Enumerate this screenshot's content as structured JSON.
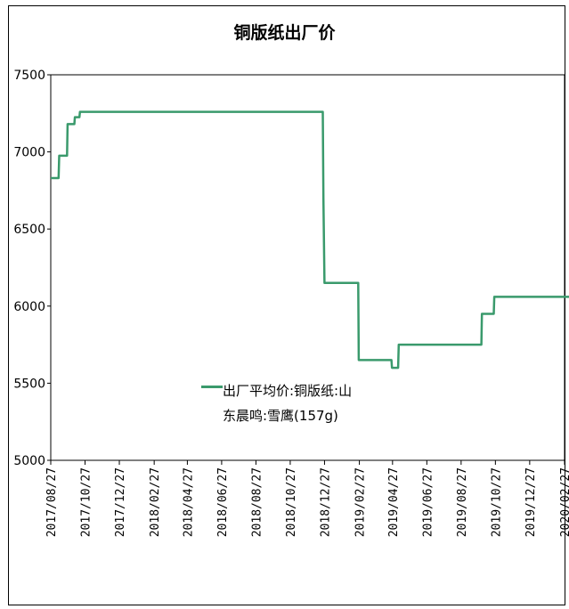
{
  "chart_data": {
    "type": "line",
    "title": "铜版纸出厂价",
    "xlabel": "",
    "ylabel": "",
    "ylim": [
      5000,
      7500
    ],
    "yticks": [
      5000,
      5500,
      6000,
      6500,
      7000,
      7500
    ],
    "xticks": [
      "2017/08/27",
      "2017/10/27",
      "2017/12/27",
      "2018/02/27",
      "2018/04/27",
      "2018/06/27",
      "2018/08/27",
      "2018/10/27",
      "2018/12/27",
      "2019/02/27",
      "2019/04/27",
      "2019/06/27",
      "2019/08/27",
      "2019/10/27",
      "2019/12/27",
      "2020/02/27"
    ],
    "grid": false,
    "legend": "center",
    "series": [
      {
        "name": "出厂平均价:铜版纸:山东晨鸣:雪鹰(157g)",
        "color": "#3a9a6c",
        "points": [
          [
            "2017-08-27",
            6830
          ],
          [
            "2017-09-10",
            6830
          ],
          [
            "2017-09-11",
            6975
          ],
          [
            "2017-09-25",
            6975
          ],
          [
            "2017-09-26",
            7180
          ],
          [
            "2017-10-08",
            7180
          ],
          [
            "2017-10-09",
            7225
          ],
          [
            "2017-10-17",
            7225
          ],
          [
            "2017-10-18",
            7260
          ],
          [
            "2018-12-24",
            7260
          ],
          [
            "2018-12-25",
            6700
          ],
          [
            "2018-12-27",
            6150
          ],
          [
            "2019-02-25",
            6150
          ],
          [
            "2019-02-26",
            5650
          ],
          [
            "2019-04-25",
            5650
          ],
          [
            "2019-04-26",
            5600
          ],
          [
            "2019-05-07",
            5600
          ],
          [
            "2019-05-08",
            5750
          ],
          [
            "2019-10-02",
            5750
          ],
          [
            "2019-10-03",
            5950
          ],
          [
            "2019-10-24",
            5950
          ],
          [
            "2019-10-25",
            6060
          ],
          [
            "2020-03-10",
            6060
          ]
        ]
      }
    ]
  }
}
